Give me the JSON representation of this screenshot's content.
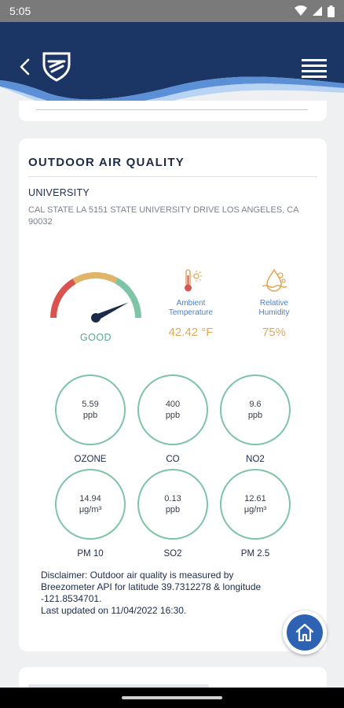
{
  "status_bar": {
    "time": "5:05"
  },
  "card": {
    "title": "OUTDOOR AIR QUALITY",
    "location_name": "UNIVERSITY",
    "address": "CAL STATE LA 5151 STATE UNIVERSITY DRIVE LOS ANGELES, CA 90032"
  },
  "gauge": {
    "label": "GOOD",
    "level": 0.86,
    "colors": [
      "#d9534f",
      "#e0b469",
      "#7ec4a6"
    ]
  },
  "metrics": {
    "temperature": {
      "label_line1": "Ambient",
      "label_line2": "Temperature",
      "value": "42.42 °F",
      "icon": "thermometer-sun-icon"
    },
    "humidity": {
      "label_line1": "Relative",
      "label_line2": "Humidity",
      "value": "75%",
      "icon": "humidity-icon"
    }
  },
  "pollutants": [
    {
      "name": "OZONE",
      "value": "5.59",
      "unit": "ppb"
    },
    {
      "name": "CO",
      "value": "400",
      "unit": "ppb"
    },
    {
      "name": "NO2",
      "value": "9.6",
      "unit": "ppb"
    },
    {
      "name": "PM 10",
      "value": "14.94",
      "unit": "μg/m³"
    },
    {
      "name": "SO2",
      "value": "0.13",
      "unit": "ppb"
    },
    {
      "name": "PM 2.5",
      "value": "12.61",
      "unit": "μg/m³"
    }
  ],
  "disclaimer": {
    "line1": "Disclaimer:  Outdoor air quality is measured by",
    "line2": "Breezometer API for latitude 39.7312278 & longitude",
    "line3": "-121.8534701.",
    "line4": "Last updated on 11/04/2022 16:30."
  },
  "theme": {
    "header_navy": "#1b3664",
    "accent_blue": "#2e63b3",
    "ring_green": "#7ec4a6",
    "value_orange": "#e0a95a"
  }
}
